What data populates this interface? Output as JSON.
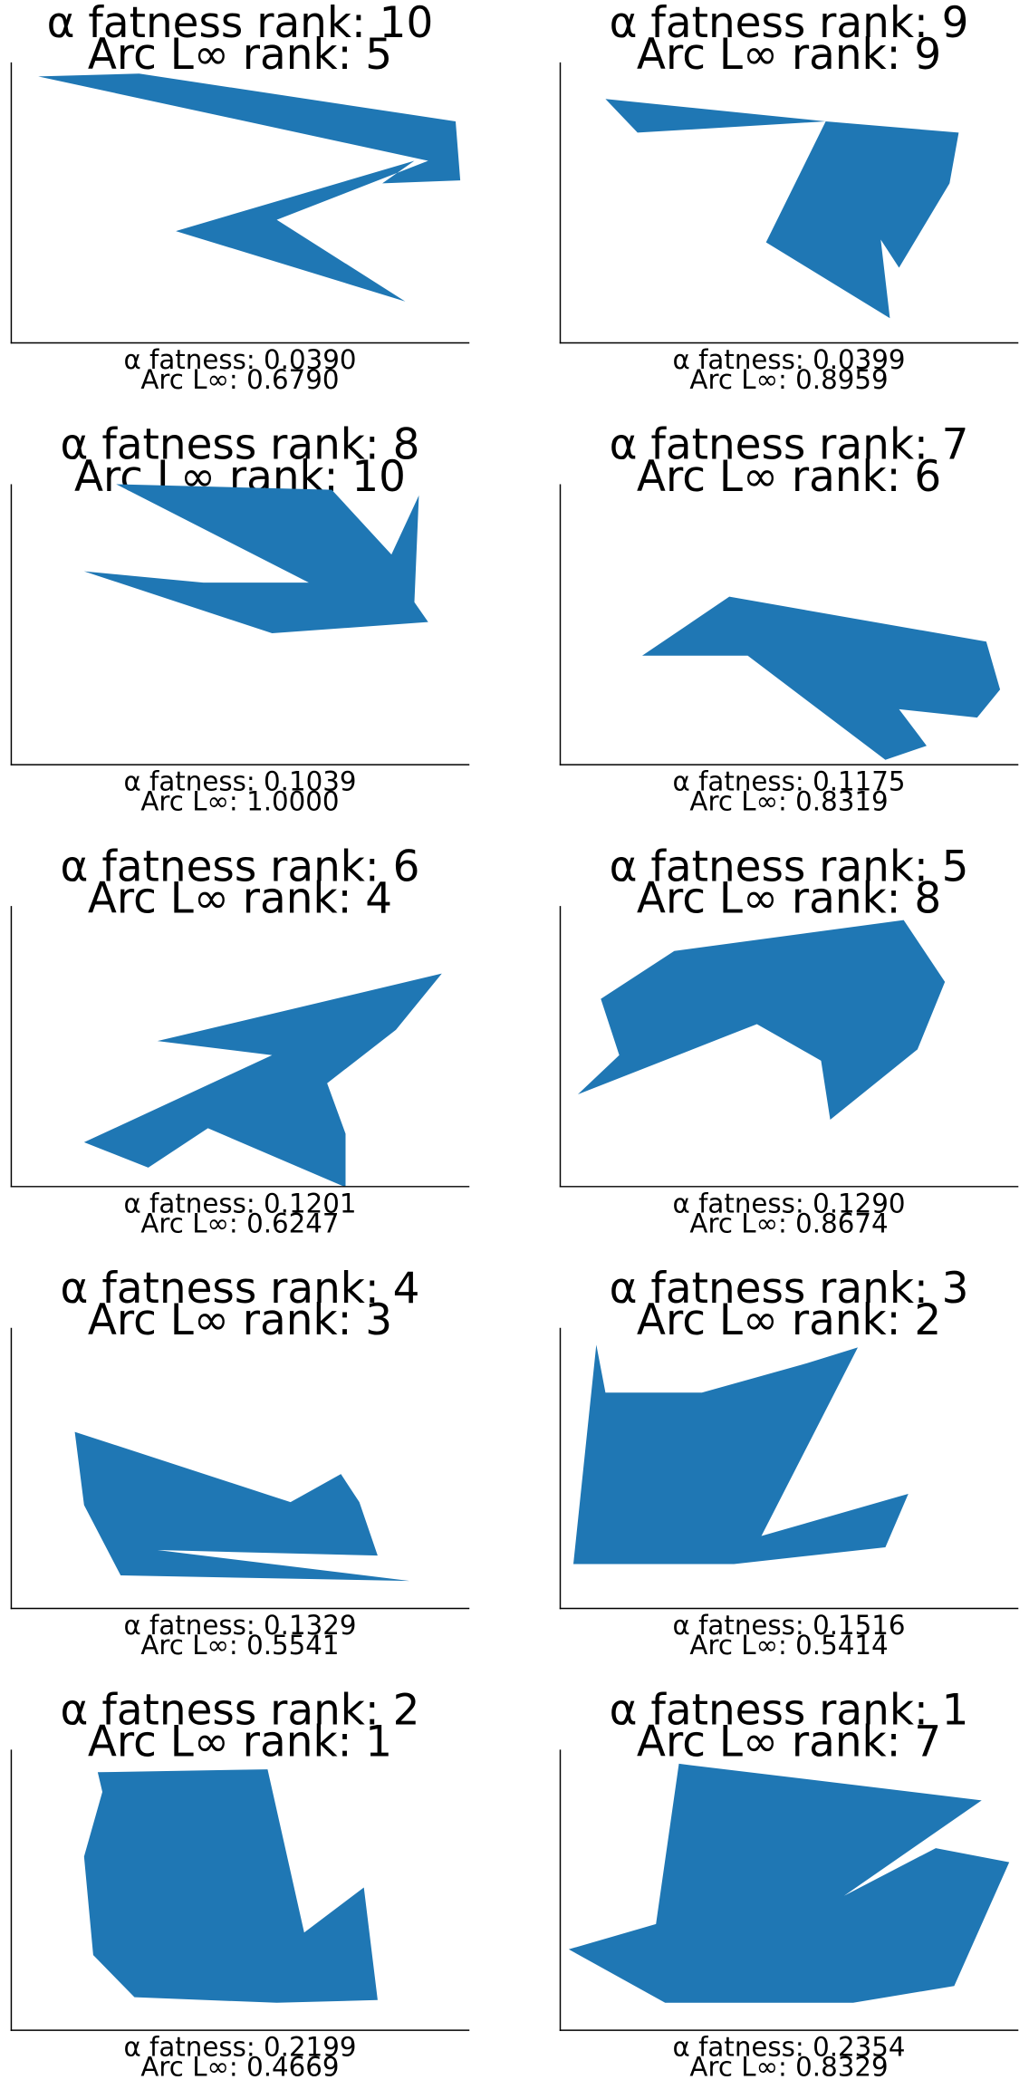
{
  "chart_data": [
    {
      "type": "area",
      "title_rank_label_1": "α fatness rank:",
      "alpha_rank": "10",
      "title_rank_label_2": "Arc L∞ rank:",
      "arc_rank": "5",
      "alpha_fatness_label": "α fatness:",
      "alpha_fatness": "0.0390",
      "arc_label": "Arc L∞:",
      "arc_value": "0.6790",
      "color": "#1f77b4",
      "xlim": [
        0,
        1
      ],
      "ylim": [
        0,
        1
      ],
      "polygon": [
        [
          0.06,
          0.95
        ],
        [
          0.28,
          0.96
        ],
        [
          0.97,
          0.79
        ],
        [
          0.98,
          0.58
        ],
        [
          0.81,
          0.57
        ],
        [
          0.88,
          0.65
        ],
        [
          0.36,
          0.4
        ],
        [
          0.86,
          0.15
        ],
        [
          0.58,
          0.44
        ],
        [
          0.91,
          0.65
        ]
      ]
    },
    {
      "type": "area",
      "title_rank_label_1": "α fatness rank:",
      "alpha_rank": "9",
      "title_rank_label_2": "Arc L∞ rank:",
      "arc_rank": "9",
      "alpha_fatness_label": "α fatness:",
      "alpha_fatness": "0.0399",
      "arc_label": "Arc L∞:",
      "arc_value": "0.8959",
      "color": "#1f77b4",
      "xlim": [
        0,
        1
      ],
      "ylim": [
        0,
        1
      ],
      "polygon": [
        [
          0.1,
          0.87
        ],
        [
          0.17,
          0.75
        ],
        [
          0.58,
          0.79
        ],
        [
          0.45,
          0.36
        ],
        [
          0.72,
          0.09
        ],
        [
          0.7,
          0.37
        ],
        [
          0.74,
          0.27
        ],
        [
          0.85,
          0.57
        ],
        [
          0.87,
          0.75
        ],
        [
          0.58,
          0.79
        ]
      ]
    },
    {
      "type": "area",
      "title_rank_label_1": "α fatness rank:",
      "alpha_rank": "8",
      "title_rank_label_2": "Arc L∞ rank:",
      "arc_rank": "10",
      "alpha_fatness_label": "α fatness:",
      "alpha_fatness": "0.1039",
      "arc_label": "Arc L∞:",
      "arc_value": "1.0000",
      "color": "#1f77b4",
      "xlim": [
        0,
        1
      ],
      "ylim": [
        0,
        1
      ],
      "polygon": [
        [
          0.23,
          1.0
        ],
        [
          0.7,
          0.98
        ],
        [
          0.83,
          0.75
        ],
        [
          0.89,
          0.96
        ],
        [
          0.88,
          0.58
        ],
        [
          0.91,
          0.51
        ],
        [
          0.57,
          0.47
        ],
        [
          0.16,
          0.69
        ],
        [
          0.42,
          0.65
        ],
        [
          0.65,
          0.65
        ]
      ]
    },
    {
      "type": "area",
      "title_rank_label_1": "α fatness rank:",
      "alpha_rank": "7",
      "title_rank_label_2": "Arc L∞ rank:",
      "arc_rank": "6",
      "alpha_fatness_label": "α fatness:",
      "alpha_fatness": "0.1175",
      "arc_label": "Arc L∞:",
      "arc_value": "0.8319",
      "color": "#1f77b4",
      "xlim": [
        0,
        1
      ],
      "ylim": [
        0,
        1
      ],
      "polygon": [
        [
          0.18,
          0.39
        ],
        [
          0.37,
          0.6
        ],
        [
          0.93,
          0.44
        ],
        [
          0.96,
          0.27
        ],
        [
          0.91,
          0.17
        ],
        [
          0.74,
          0.2
        ],
        [
          0.8,
          0.07
        ],
        [
          0.71,
          0.02
        ],
        [
          0.41,
          0.39
        ]
      ]
    },
    {
      "type": "area",
      "title_rank_label_1": "α fatness rank:",
      "alpha_rank": "6",
      "title_rank_label_2": "Arc L∞ rank:",
      "arc_rank": "4",
      "alpha_fatness_label": "α fatness:",
      "alpha_fatness": "0.1201",
      "arc_label": "Arc L∞:",
      "arc_value": "0.6247",
      "color": "#1f77b4",
      "xlim": [
        0,
        1
      ],
      "ylim": [
        0,
        1
      ],
      "polygon": [
        [
          0.16,
          0.16
        ],
        [
          0.57,
          0.47
        ],
        [
          0.32,
          0.52
        ],
        [
          0.94,
          0.76
        ],
        [
          0.84,
          0.56
        ],
        [
          0.69,
          0.37
        ],
        [
          0.73,
          0.19
        ],
        [
          0.73,
          0.0
        ],
        [
          0.43,
          0.21
        ],
        [
          0.3,
          0.07
        ]
      ]
    },
    {
      "type": "area",
      "title_rank_label_1": "α fatness rank:",
      "alpha_rank": "5",
      "title_rank_label_2": "Arc L∞ rank:",
      "arc_rank": "8",
      "alpha_fatness_label": "α fatness:",
      "alpha_fatness": "0.1290",
      "arc_label": "Arc L∞:",
      "arc_value": "0.8674",
      "color": "#1f77b4",
      "xlim": [
        0,
        1
      ],
      "ylim": [
        0,
        1
      ],
      "polygon": [
        [
          0.04,
          0.33
        ],
        [
          0.13,
          0.47
        ],
        [
          0.09,
          0.67
        ],
        [
          0.25,
          0.84
        ],
        [
          0.75,
          0.95
        ],
        [
          0.84,
          0.73
        ],
        [
          0.78,
          0.49
        ],
        [
          0.59,
          0.24
        ],
        [
          0.57,
          0.45
        ],
        [
          0.43,
          0.58
        ]
      ]
    },
    {
      "type": "area",
      "title_rank_label_1": "α fatness rank:",
      "alpha_rank": "4",
      "title_rank_label_2": "Arc L∞ rank:",
      "arc_rank": "3",
      "alpha_fatness_label": "α fatness:",
      "alpha_fatness": "0.1329",
      "arc_label": "Arc L∞:",
      "arc_value": "0.5541",
      "color": "#1f77b4",
      "xlim": [
        0,
        1
      ],
      "ylim": [
        0,
        1
      ],
      "polygon": [
        [
          0.14,
          0.63
        ],
        [
          0.61,
          0.38
        ],
        [
          0.72,
          0.48
        ],
        [
          0.76,
          0.38
        ],
        [
          0.8,
          0.19
        ],
        [
          0.32,
          0.21
        ],
        [
          0.87,
          0.1
        ],
        [
          0.24,
          0.12
        ],
        [
          0.16,
          0.37
        ]
      ]
    },
    {
      "type": "area",
      "title_rank_label_1": "α fatness rank:",
      "alpha_rank": "3",
      "title_rank_label_2": "Arc L∞ rank:",
      "arc_rank": "2",
      "alpha_fatness_label": "α fatness:",
      "alpha_fatness": "0.1516",
      "arc_label": "Arc L∞:",
      "arc_value": "0.5414",
      "color": "#1f77b4",
      "xlim": [
        0,
        1
      ],
      "ylim": [
        0,
        1
      ],
      "polygon": [
        [
          0.08,
          0.94
        ],
        [
          0.1,
          0.77
        ],
        [
          0.31,
          0.77
        ],
        [
          0.53,
          0.87
        ],
        [
          0.65,
          0.93
        ],
        [
          0.44,
          0.26
        ],
        [
          0.76,
          0.41
        ],
        [
          0.71,
          0.22
        ],
        [
          0.38,
          0.16
        ],
        [
          0.03,
          0.16
        ]
      ]
    },
    {
      "type": "area",
      "title_rank_label_1": "α fatness rank:",
      "alpha_rank": "2",
      "title_rank_label_2": "Arc L∞ rank:",
      "arc_rank": "1",
      "alpha_fatness_label": "α fatness:",
      "alpha_fatness": "0.2199",
      "arc_label": "Arc L∞:",
      "arc_value": "0.4669",
      "color": "#1f77b4",
      "xlim": [
        0,
        1
      ],
      "ylim": [
        0,
        1
      ],
      "polygon": [
        [
          0.19,
          0.92
        ],
        [
          0.56,
          0.93
        ],
        [
          0.64,
          0.35
        ],
        [
          0.77,
          0.51
        ],
        [
          0.8,
          0.11
        ],
        [
          0.58,
          0.1
        ],
        [
          0.27,
          0.12
        ],
        [
          0.18,
          0.27
        ],
        [
          0.16,
          0.62
        ],
        [
          0.2,
          0.85
        ]
      ]
    },
    {
      "type": "area",
      "title_rank_label_1": "α fatness rank:",
      "alpha_rank": "1",
      "title_rank_label_2": "Arc L∞ rank:",
      "arc_rank": "7",
      "alpha_fatness_label": "α fatness:",
      "alpha_fatness": "0.2354",
      "arc_label": "Arc L∞:",
      "arc_value": "0.8329",
      "color": "#1f77b4",
      "xlim": [
        0,
        1
      ],
      "ylim": [
        0,
        1
      ],
      "polygon": [
        [
          0.26,
          0.95
        ],
        [
          0.92,
          0.82
        ],
        [
          0.62,
          0.48
        ],
        [
          0.82,
          0.65
        ],
        [
          0.98,
          0.6
        ],
        [
          0.86,
          0.16
        ],
        [
          0.64,
          0.1
        ],
        [
          0.23,
          0.1
        ],
        [
          0.02,
          0.29
        ],
        [
          0.21,
          0.38
        ]
      ]
    }
  ]
}
